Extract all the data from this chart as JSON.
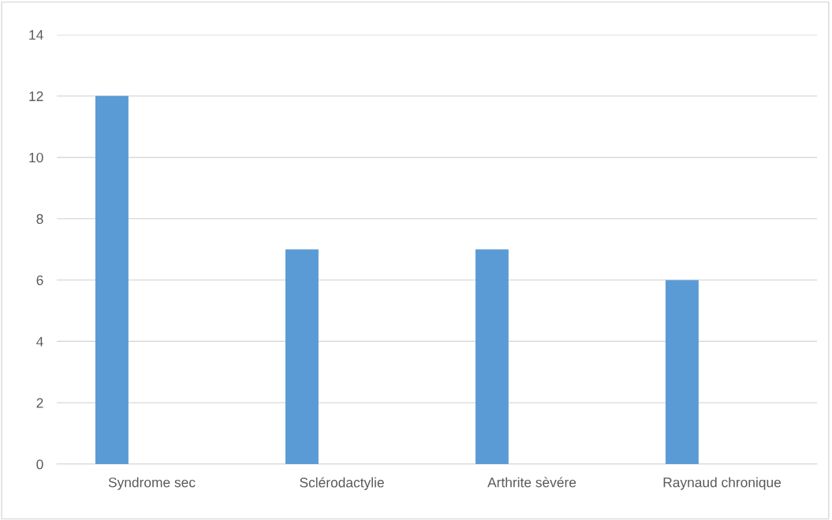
{
  "chart_data": {
    "type": "bar",
    "categories": [
      "Syndrome sec",
      "Sclérodactylie",
      "Arthrite sèvére",
      "Raynaud chronique"
    ],
    "values": [
      12,
      7,
      7,
      6
    ],
    "color": "#5b9bd5",
    "ylim": [
      0,
      14
    ],
    "yticks": [
      0,
      2,
      4,
      6,
      8,
      10,
      12,
      14
    ],
    "grid": "y",
    "legend": false
  }
}
